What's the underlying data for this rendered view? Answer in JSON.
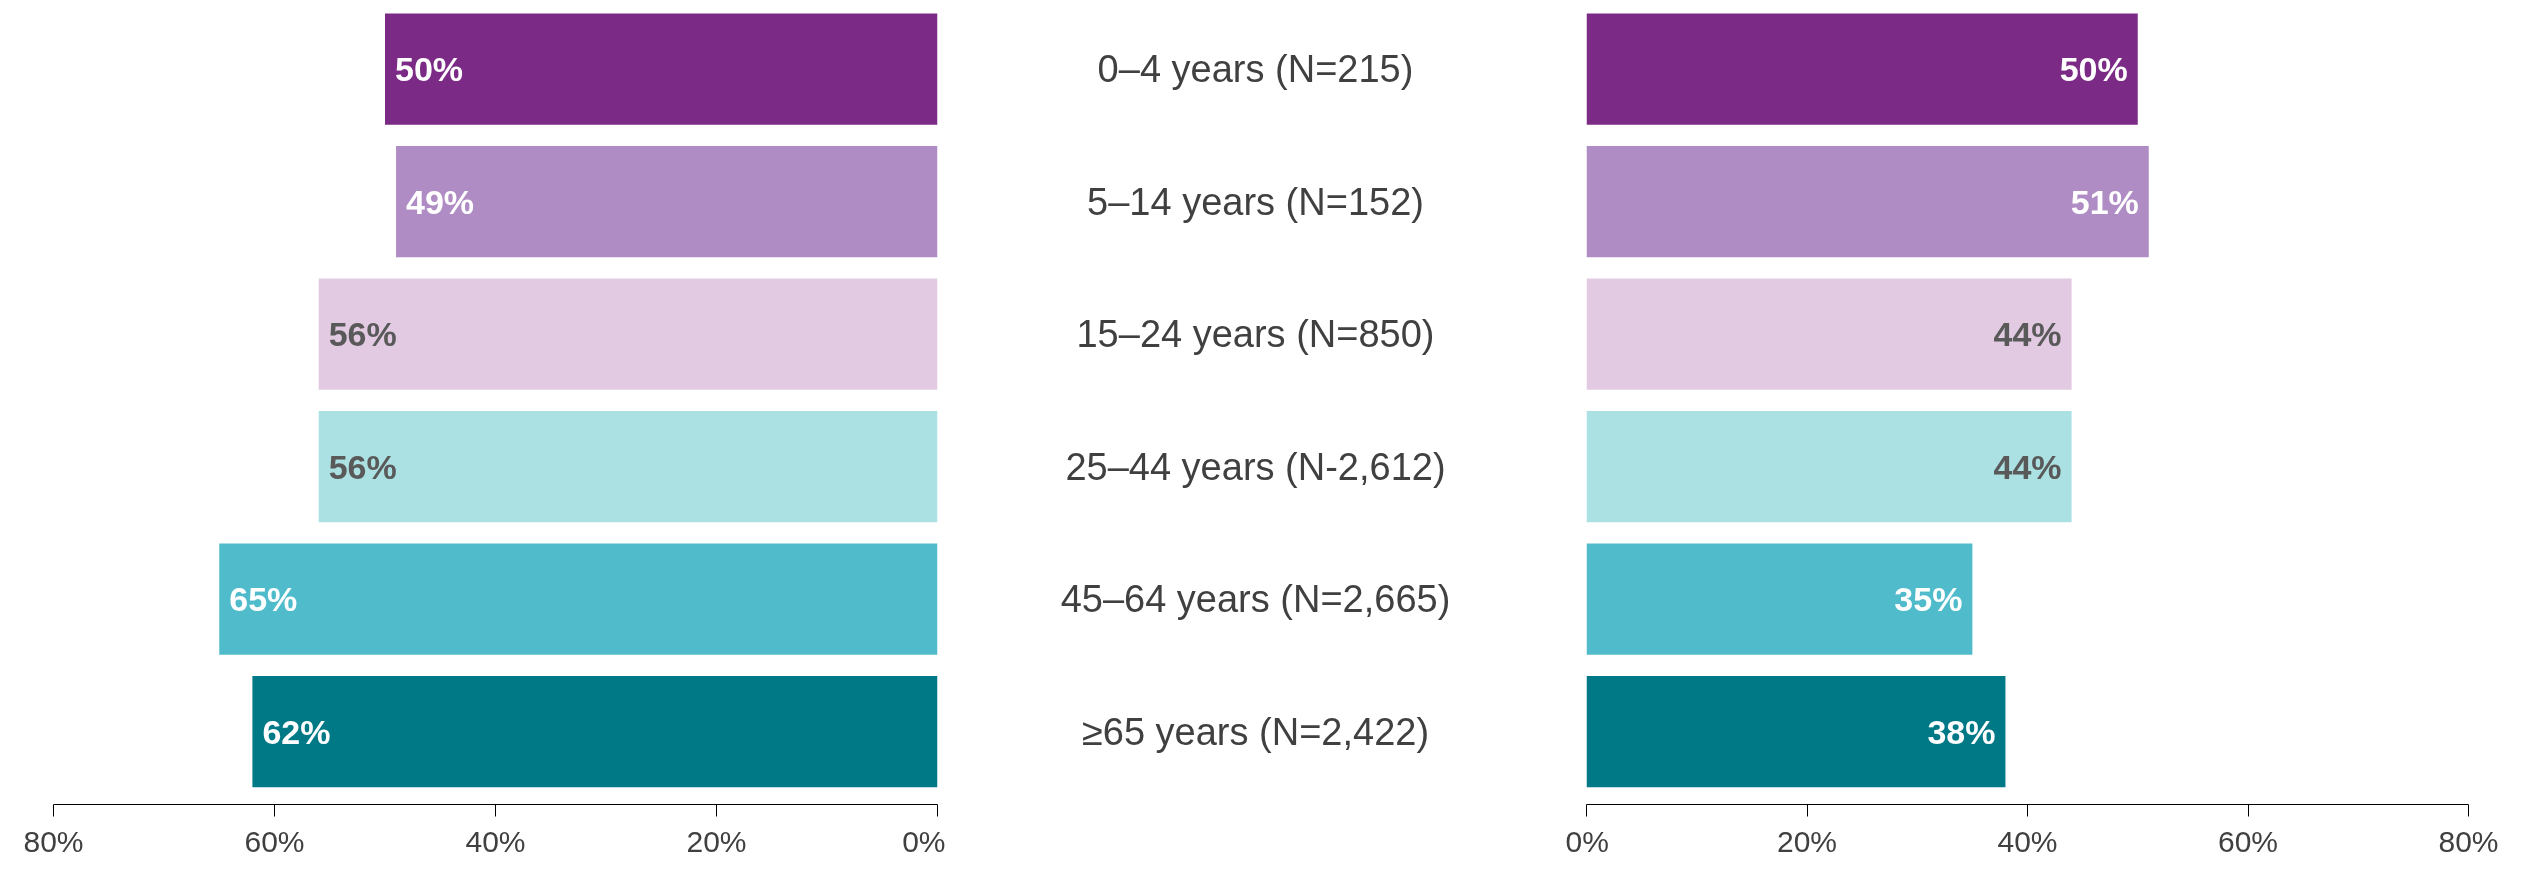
{
  "chart_data": [
    {
      "type": "bar",
      "orientation": "horizontal",
      "categories": [
        "0–4 years (N=215)",
        "5–14 years (N=152)",
        "15–24 years (N=850)",
        "25–44 years (N-2,612)",
        "45–64 years (N=2,665)",
        "≥65 years (N=2,422)"
      ],
      "values": [
        50,
        49,
        56,
        56,
        65,
        62
      ],
      "value_labels": [
        "50%",
        "49%",
        "56%",
        "56%",
        "65%",
        "62%"
      ],
      "colors": [
        "#7b2a86",
        "#b08cc4",
        "#e2cae3",
        "#abe1e2",
        "#50bccb",
        "#007987"
      ],
      "xlim": [
        80,
        0
      ],
      "xticks": [
        {
          "value": 80,
          "label": "80%"
        },
        {
          "value": 60,
          "label": "60%"
        },
        {
          "value": 40,
          "label": "40%"
        },
        {
          "value": 20,
          "label": "20%"
        },
        {
          "value": 0,
          "label": "0%"
        }
      ]
    },
    {
      "type": "bar",
      "orientation": "horizontal",
      "values": [
        50,
        51,
        44,
        44,
        35,
        38
      ],
      "value_labels": [
        "50%",
        "51%",
        "44%",
        "44%",
        "35%",
        "38%"
      ],
      "colors": [
        "#7b2a86",
        "#b08cc4",
        "#e2cae3",
        "#abe1e2",
        "#50bccb",
        "#007987"
      ],
      "xlim": [
        0,
        80
      ],
      "xticks": [
        {
          "value": 0,
          "label": "0%"
        },
        {
          "value": 20,
          "label": "20%"
        },
        {
          "value": 40,
          "label": "40%"
        },
        {
          "value": 60,
          "label": "60%"
        },
        {
          "value": 80,
          "label": "80%"
        }
      ],
      "tick_labels": "x"
    }
  ]
}
